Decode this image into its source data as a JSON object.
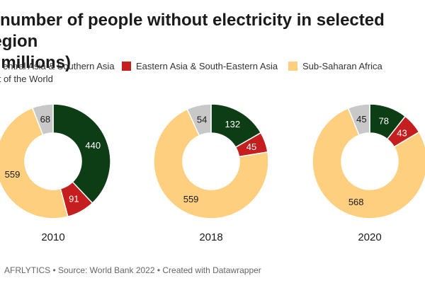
{
  "title_line1": "e number of people without electricity in selected region",
  "title_line2": "n millions)",
  "legend": [
    {
      "label": "entral Asia & Southern Asia",
      "color": "#0d3d14"
    },
    {
      "label": "Eastern Asia & South-Eastern Asia",
      "color": "#c41e1e"
    },
    {
      "label": "Sub-Saharan Africa",
      "color": "#fdcf7e"
    },
    {
      "label": "est of the World",
      "color": "#c8c8c8"
    }
  ],
  "footer": "AFRLYTICS • Source: World Bank 2022 • Created with Datawrapper",
  "chart_data": [
    {
      "type": "pie",
      "variant": "donut",
      "title": "2010",
      "series": [
        {
          "name": "Central Asia & Southern Asia",
          "value": 440,
          "color": "#0d3d14"
        },
        {
          "name": "Eastern Asia & South-Eastern Asia",
          "value": 91,
          "color": "#c41e1e"
        },
        {
          "name": "Sub-Saharan Africa",
          "value": 559,
          "color": "#fdcf7e"
        },
        {
          "name": "Rest of the World",
          "value": 68,
          "color": "#c8c8c8"
        }
      ]
    },
    {
      "type": "pie",
      "variant": "donut",
      "title": "2018",
      "series": [
        {
          "name": "Central Asia & Southern Asia",
          "value": 132,
          "color": "#0d3d14"
        },
        {
          "name": "Eastern Asia & South-Eastern Asia",
          "value": 45,
          "color": "#c41e1e"
        },
        {
          "name": "Sub-Saharan Africa",
          "value": 559,
          "color": "#fdcf7e"
        },
        {
          "name": "Rest of the World",
          "value": 54,
          "color": "#c8c8c8"
        }
      ]
    },
    {
      "type": "pie",
      "variant": "donut",
      "title": "2020",
      "series": [
        {
          "name": "Central Asia & Southern Asia",
          "value": 78,
          "color": "#0d3d14"
        },
        {
          "name": "Eastern Asia & South-Eastern Asia",
          "value": 43,
          "color": "#c41e1e"
        },
        {
          "name": "Sub-Saharan Africa",
          "value": 568,
          "color": "#fdcf7e"
        },
        {
          "name": "Rest of the World",
          "value": 45,
          "color": "#c8c8c8"
        }
      ]
    }
  ]
}
